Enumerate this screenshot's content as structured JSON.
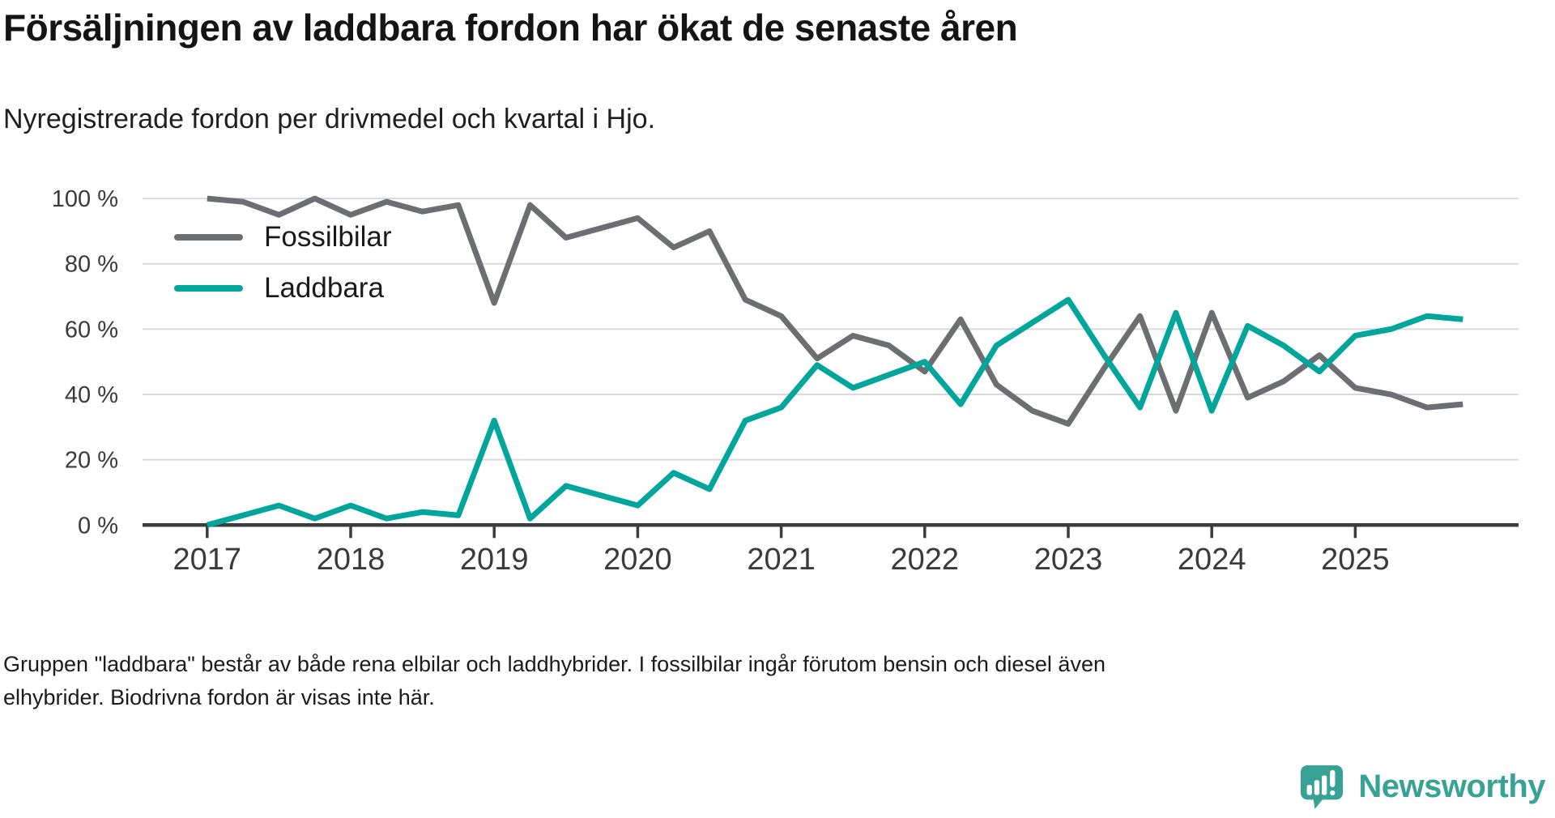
{
  "header": {
    "title": "Försäljningen av laddbara fordon har ökat de senaste åren",
    "subtitle": "Nyregistrerade fordon per drivmedel och kvartal i Hjo."
  },
  "chart_data": {
    "type": "line",
    "unit": "%",
    "grid": "horizontal",
    "legend_position": "top-left-inside",
    "ylim": [
      0,
      100
    ],
    "y_ticks": [
      0,
      20,
      40,
      60,
      80,
      100
    ],
    "y_tick_labels": [
      "0 %",
      "20 %",
      "40 %",
      "60 %",
      "80 %",
      "100 %"
    ],
    "x_tick_labels": [
      "2017",
      "2018",
      "2019",
      "2020",
      "2021",
      "2022",
      "2023",
      "2024",
      "2025"
    ],
    "x_quarters": [
      "2017 Q1",
      "2017 Q2",
      "2017 Q3",
      "2017 Q4",
      "2018 Q1",
      "2018 Q2",
      "2018 Q3",
      "2018 Q4",
      "2019 Q1",
      "2019 Q2",
      "2019 Q3",
      "2019 Q4",
      "2020 Q1",
      "2020 Q2",
      "2020 Q3",
      "2020 Q4",
      "2021 Q1",
      "2021 Q2",
      "2021 Q3",
      "2021 Q4",
      "2022 Q1",
      "2022 Q2",
      "2022 Q3",
      "2022 Q4",
      "2023 Q1",
      "2023 Q2",
      "2023 Q3",
      "2023 Q4",
      "2024 Q1",
      "2024 Q2",
      "2024 Q3",
      "2024 Q4",
      "2025 Q1",
      "2025 Q2",
      "2025 Q3",
      "2025 Q4"
    ],
    "series": [
      {
        "name": "Fossilbilar",
        "color": "#6d6e71",
        "values": [
          100,
          99,
          95,
          100,
          95,
          99,
          96,
          98,
          68,
          98,
          88,
          91,
          94,
          85,
          90,
          69,
          64,
          51,
          58,
          55,
          47,
          63,
          43,
          35,
          31,
          48,
          64,
          35,
          65,
          39,
          44,
          52,
          42,
          40,
          36,
          37
        ]
      },
      {
        "name": "Laddbara",
        "color": "#00a69c",
        "values": [
          0,
          3,
          6,
          2,
          6,
          2,
          4,
          3,
          32,
          2,
          12,
          9,
          6,
          16,
          11,
          32,
          36,
          49,
          42,
          46,
          50,
          37,
          55,
          62,
          69,
          52,
          36,
          65,
          35,
          61,
          55,
          47,
          58,
          60,
          64,
          63
        ]
      }
    ],
    "axis_color": "#3c3c3c",
    "gridline_color": "#d9d9d9",
    "label_color": "#3a3a3a"
  },
  "footnote": {
    "lines": [
      "Gruppen \"laddbara\" består av både rena elbilar och laddhybrider. I fossilbilar ingår förutom bensin och diesel även",
      "elhybrider. Biodrivna fordon är visas inte här."
    ]
  },
  "brand": {
    "name": "Newsworthy",
    "color": "#38a295"
  }
}
